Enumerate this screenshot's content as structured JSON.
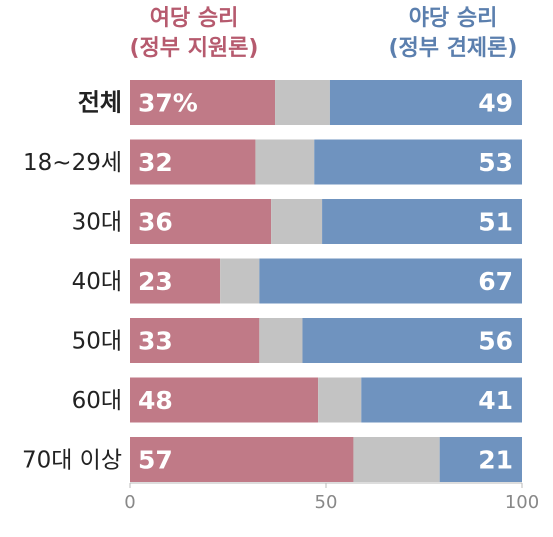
{
  "legend": {
    "ruling": {
      "line1": "여당 승리",
      "line2": "(정부 지원론)",
      "color": "#c07a87"
    },
    "opposition": {
      "line1": "야당 승리",
      "line2": "(정부 견제론)",
      "color": "#6f93bf"
    }
  },
  "chart_data": {
    "type": "bar",
    "orientation": "horizontal",
    "stacked": true,
    "normalized_to": 100,
    "categories": [
      "전체",
      "18~29세",
      "30대",
      "40대",
      "50대",
      "60대",
      "70대 이상"
    ],
    "series": [
      {
        "name": "여당 승리 (정부 지원론)",
        "color": "#c07a87",
        "values": [
          37,
          32,
          36,
          23,
          33,
          48,
          57
        ],
        "labels": [
          "37%",
          "32",
          "36",
          "23",
          "33",
          "48",
          "57"
        ]
      },
      {
        "color": "#c3c3c3",
        "values": [
          14,
          15,
          13,
          10,
          11,
          11,
          22
        ]
      },
      {
        "name": "야당 승리 (정부 견제론)",
        "color": "#6f93bf",
        "values": [
          49,
          53,
          51,
          67,
          56,
          41,
          21
        ],
        "labels": [
          "49",
          "53",
          "51",
          "67",
          "56",
          "41",
          "21"
        ]
      }
    ],
    "xlim": [
      0,
      100
    ],
    "xticks": [
      0,
      50,
      100
    ],
    "xlabel": "",
    "ylabel": "",
    "grid": false
  }
}
